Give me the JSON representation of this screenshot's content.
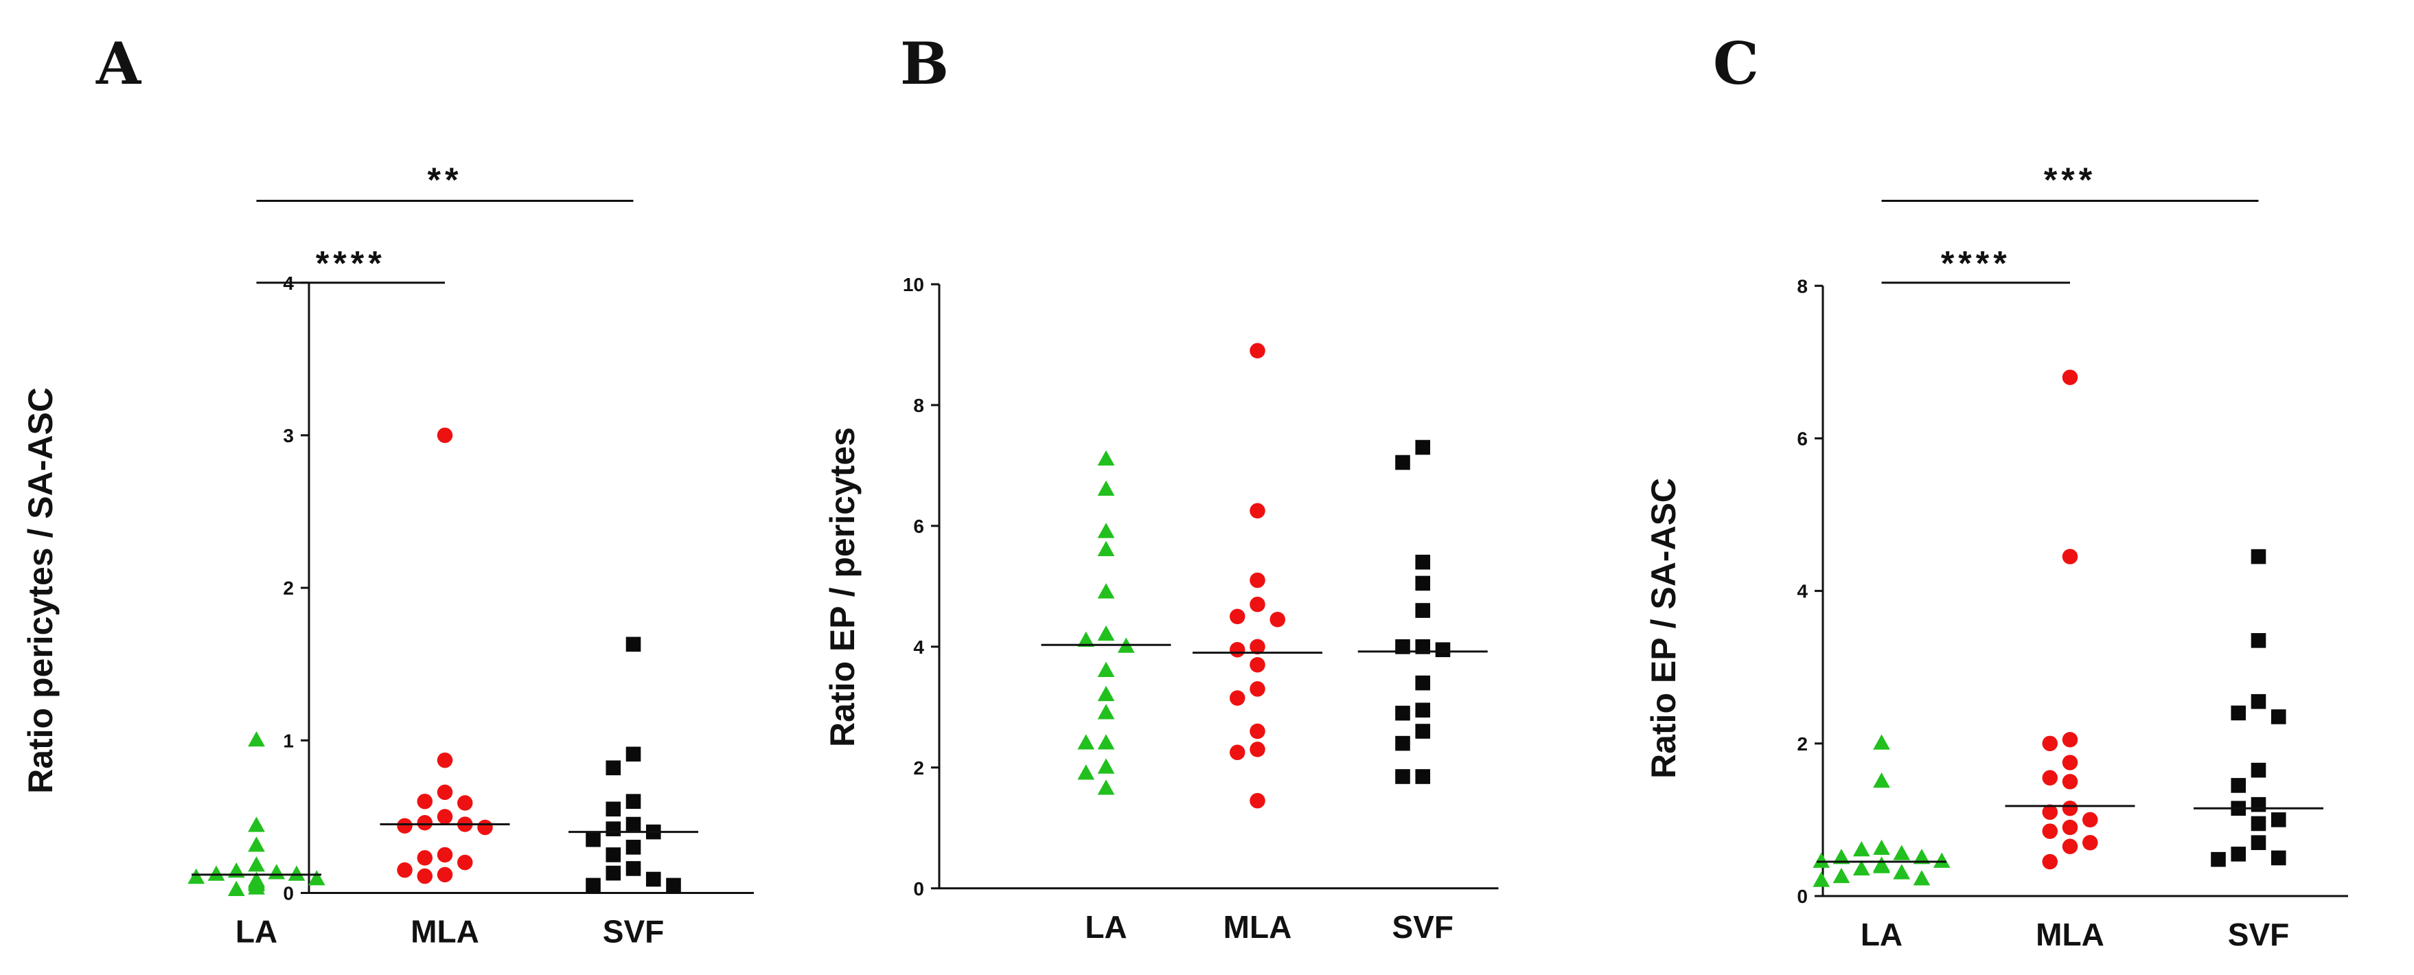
{
  "colors": {
    "LA": "#22c01e",
    "MLA": "#ee1111",
    "SVF": "#0a0a0a"
  },
  "chart_data": [
    {
      "panel": "A",
      "type": "scatter",
      "ylabel": "Ratio pericytes / SA-ASC",
      "categories": [
        "LA",
        "MLA",
        "SVF"
      ],
      "ylim": [
        0,
        4
      ],
      "yticks": [
        0,
        1,
        2,
        3,
        4
      ],
      "tick_labels": [
        "0",
        "1",
        "2",
        "3",
        "4"
      ],
      "series": [
        {
          "name": "LA",
          "marker": "triangle",
          "median": 0.12,
          "values": [
            1.0,
            0.44,
            0.31,
            0.18,
            0.13,
            0.14,
            0.12,
            0.08,
            0.07,
            0.1,
            0.05,
            0.02,
            0.03,
            0.12,
            0.09,
            0.06
          ]
        },
        {
          "name": "MLA",
          "marker": "circle",
          "median": 0.45,
          "values": [
            3.0,
            0.87,
            0.66,
            0.6,
            0.59,
            0.5,
            0.46,
            0.45,
            0.44,
            0.43,
            0.25,
            0.23,
            0.2,
            0.15,
            0.12,
            0.11
          ]
        },
        {
          "name": "SVF",
          "marker": "square",
          "median": 0.4,
          "values": [
            1.63,
            0.91,
            0.82,
            0.6,
            0.55,
            0.45,
            0.42,
            0.4,
            0.35,
            0.3,
            0.25,
            0.16,
            0.13,
            0.09,
            0.05,
            0.05
          ]
        }
      ],
      "significance": [
        {
          "from": "LA",
          "to": "MLA",
          "label": "****"
        },
        {
          "from": "LA",
          "to": "SVF",
          "label": "**"
        }
      ]
    },
    {
      "panel": "B",
      "type": "scatter",
      "ylabel": "Ratio EP / pericytes",
      "categories": [
        "LA",
        "MLA",
        "SVF"
      ],
      "ylim": [
        0,
        10
      ],
      "yticks": [
        0,
        2,
        4,
        6,
        8,
        10
      ],
      "tick_labels": [
        "0",
        "2",
        "4",
        "6",
        "8",
        "10"
      ],
      "series": [
        {
          "name": "LA",
          "marker": "triangle",
          "median": 4.03,
          "values": [
            7.1,
            6.6,
            5.9,
            5.6,
            4.9,
            4.2,
            4.1,
            4.0,
            3.6,
            3.2,
            2.9,
            2.4,
            2.4,
            2.0,
            1.9,
            1.65
          ]
        },
        {
          "name": "MLA",
          "marker": "circle",
          "median": 3.9,
          "values": [
            8.9,
            6.25,
            5.1,
            4.7,
            4.5,
            4.45,
            4.0,
            3.95,
            3.7,
            3.3,
            3.15,
            2.6,
            2.3,
            2.25,
            1.45
          ]
        },
        {
          "name": "SVF",
          "marker": "square",
          "median": 3.92,
          "values": [
            7.3,
            7.05,
            5.4,
            5.05,
            4.6,
            4.0,
            4.0,
            3.95,
            3.4,
            2.95,
            2.9,
            2.6,
            2.4,
            1.85,
            1.85
          ]
        }
      ],
      "significance": []
    },
    {
      "panel": "C",
      "type": "scatter",
      "ylabel": "Ratio EP / SA-ASC",
      "categories": [
        "LA",
        "MLA",
        "SVF"
      ],
      "ylim": [
        0,
        8
      ],
      "yticks": [
        0,
        2,
        4,
        6,
        8
      ],
      "tick_labels": [
        "0",
        "2",
        "4",
        "6",
        "8"
      ],
      "series": [
        {
          "name": "LA",
          "marker": "triangle",
          "median": 0.45,
          "values": [
            2.0,
            1.5,
            0.6,
            0.62,
            0.55,
            0.5,
            0.5,
            0.45,
            0.45,
            0.4,
            0.38,
            0.35,
            0.3,
            0.25,
            0.22,
            0.2
          ]
        },
        {
          "name": "MLA",
          "marker": "circle",
          "median": 1.18,
          "values": [
            6.8,
            4.45,
            2.05,
            2.0,
            1.75,
            1.55,
            1.5,
            1.15,
            1.1,
            1.0,
            0.9,
            0.85,
            0.7,
            0.65,
            0.45
          ]
        },
        {
          "name": "SVF",
          "marker": "square",
          "median": 1.15,
          "values": [
            4.45,
            3.35,
            2.55,
            2.4,
            2.35,
            1.65,
            1.45,
            1.2,
            1.15,
            1.0,
            0.95,
            0.7,
            0.55,
            0.5,
            0.48
          ]
        }
      ],
      "significance": [
        {
          "from": "LA",
          "to": "MLA",
          "label": "****"
        },
        {
          "from": "LA",
          "to": "SVF",
          "label": "***"
        }
      ]
    }
  ]
}
